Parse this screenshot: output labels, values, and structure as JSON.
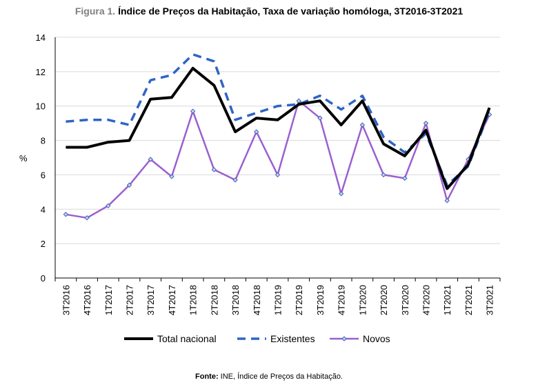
{
  "figure": {
    "label": "Figura 1.",
    "title": "Índice de Preços da Habitação, Taxa de variação homóloga, 3T2016-3T2021"
  },
  "source": {
    "label": "Fonte:",
    "text": "INE, Índice de Preços da Habitação."
  },
  "chart_data": {
    "type": "line",
    "ylabel": "%",
    "xlabel": "",
    "ylim": [
      0,
      14
    ],
    "yticks": [
      0,
      2,
      4,
      6,
      8,
      10,
      12,
      14
    ],
    "grid": true,
    "legend_position": "bottom",
    "categories": [
      "3T2016",
      "4T2016",
      "1T2017",
      "2T2017",
      "3T2017",
      "4T2017",
      "1T2018",
      "2T2018",
      "3T2018",
      "4T2018",
      "1T2019",
      "2T2019",
      "3T2019",
      "4T2019",
      "1T2020",
      "2T2020",
      "3T2020",
      "4T2020",
      "1T2021",
      "2T2021",
      "3T2021"
    ],
    "series": [
      {
        "name": "Total nacional",
        "color": "#000000",
        "style": "solid",
        "values": [
          7.6,
          7.6,
          7.9,
          8.0,
          10.4,
          10.5,
          12.2,
          11.2,
          8.5,
          9.3,
          9.2,
          10.1,
          10.3,
          8.9,
          10.3,
          7.8,
          7.1,
          8.6,
          5.2,
          6.6,
          9.9
        ]
      },
      {
        "name": "Existentes",
        "color": "#2e64c4",
        "style": "dashed",
        "values": [
          9.1,
          9.2,
          9.2,
          8.9,
          11.5,
          11.8,
          13.0,
          12.6,
          9.2,
          9.6,
          10.0,
          10.1,
          10.6,
          9.8,
          10.6,
          8.2,
          7.3,
          8.4,
          5.4,
          6.5,
          9.7
        ]
      },
      {
        "name": "Novos",
        "color": "#9b5fd0",
        "style": "solid-marker",
        "values": [
          3.7,
          3.5,
          4.2,
          5.4,
          6.9,
          5.9,
          9.7,
          6.3,
          5.7,
          8.5,
          6.0,
          10.3,
          9.3,
          4.9,
          8.9,
          6.0,
          5.8,
          9.0,
          4.5,
          6.9,
          9.5
        ]
      }
    ]
  }
}
